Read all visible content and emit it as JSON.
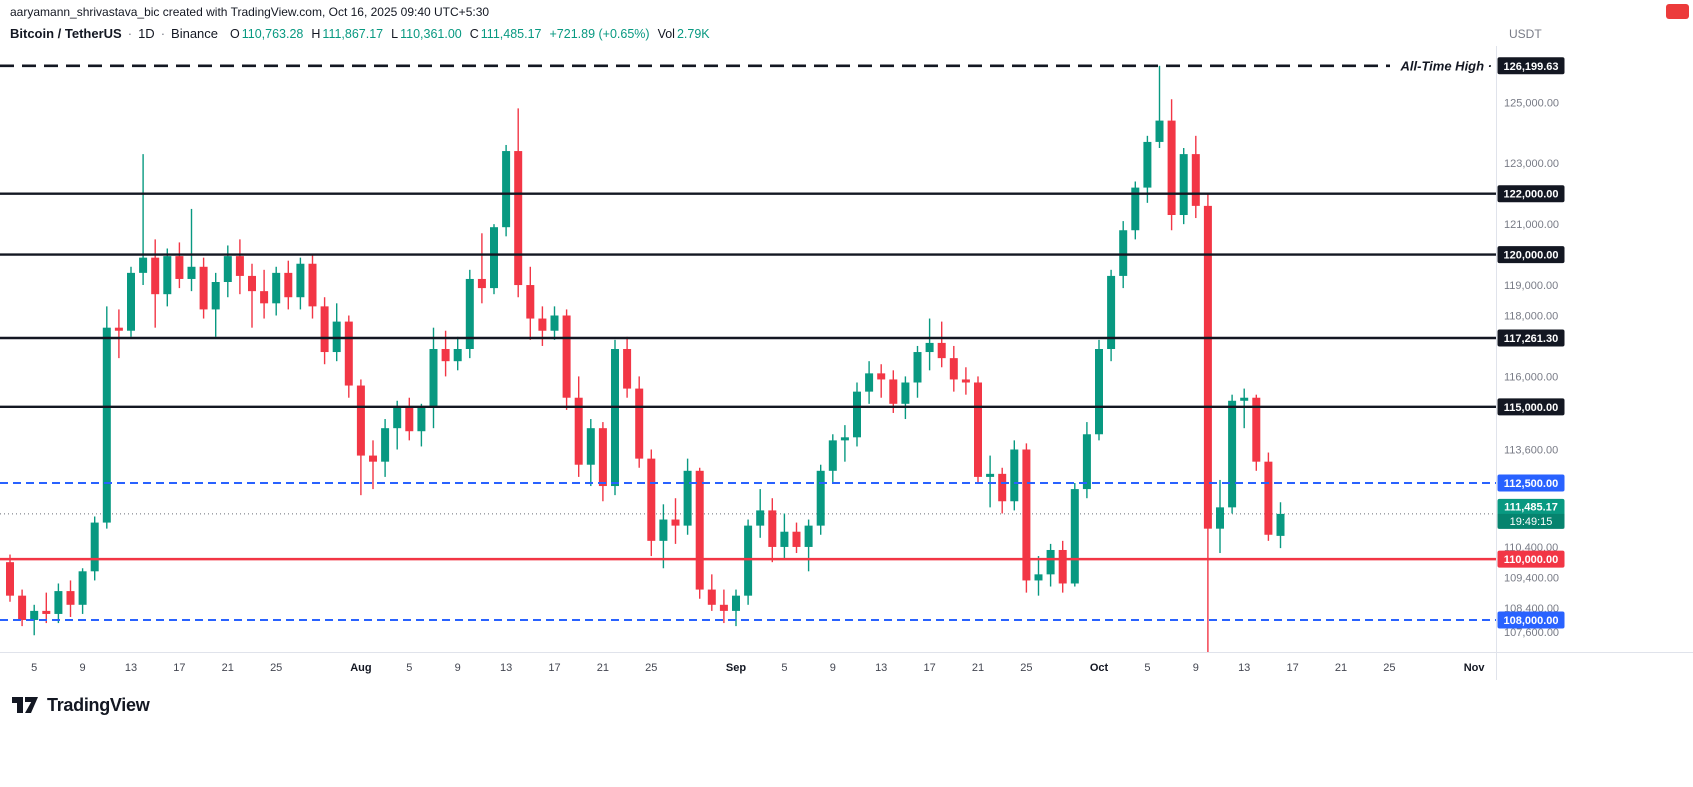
{
  "attribution": {
    "text": "aaryamann_shrivastava_bic created with TradingView.com, Oct 16, 2025 09:40 UTC+5:30"
  },
  "toolbar": {
    "symbol": "Bitcoin / TetherUS",
    "separator": "·",
    "interval": "1D",
    "exchange": "Binance",
    "ohlc": {
      "o_label": "O",
      "o": "110,763.28",
      "h_label": "H",
      "h": "111,867.17",
      "l_label": "L",
      "l": "110,361.00",
      "c_label": "C",
      "c": "111,485.17",
      "change": "+721.89 (+0.65%)",
      "vol_label": "Vol",
      "vol": "2.79K"
    },
    "currency": "USDT"
  },
  "footer": {
    "logo_text": "TradingView"
  },
  "chart_data": {
    "type": "candlestick",
    "symbol": "BTCUSDT",
    "interval": "1D",
    "exchange": "Binance",
    "colors": {
      "up": "#089981",
      "down": "#F23645",
      "blue_level": "#2962FF",
      "red_level": "#F23645",
      "black_level": "#131722"
    },
    "candle_format": [
      "date",
      "open",
      "high",
      "low",
      "close"
    ],
    "candles": [
      [
        "Jul 3",
        109900,
        110150,
        108600,
        108800
      ],
      [
        "Jul 4",
        108800,
        109000,
        107800,
        108000
      ],
      [
        "Jul 5",
        108000,
        108500,
        107500,
        108300
      ],
      [
        "Jul 6",
        108300,
        108900,
        107900,
        108200
      ],
      [
        "Jul 7",
        108200,
        109200,
        107900,
        108950
      ],
      [
        "Jul 8",
        108950,
        109300,
        108100,
        108500
      ],
      [
        "Jul 9",
        108500,
        109700,
        108200,
        109600
      ],
      [
        "Jul 10",
        109600,
        111400,
        109300,
        111200
      ],
      [
        "Jul 11",
        111200,
        118300,
        111000,
        117600
      ],
      [
        "Jul 12",
        117600,
        118200,
        116600,
        117500
      ],
      [
        "Jul 13",
        117500,
        119600,
        117300,
        119400
      ],
      [
        "Jul 14",
        119400,
        123300,
        119000,
        119900
      ],
      [
        "Jul 15",
        119900,
        120500,
        117600,
        118700
      ],
      [
        "Jul 16",
        118700,
        120200,
        118300,
        119950
      ],
      [
        "Jul 17",
        119950,
        120400,
        118900,
        119200
      ],
      [
        "Jul 18",
        119200,
        121500,
        118800,
        119600
      ],
      [
        "Jul 19",
        119600,
        119900,
        117900,
        118200
      ],
      [
        "Jul 20",
        118200,
        119400,
        117300,
        119100
      ],
      [
        "Jul 21",
        119100,
        120300,
        118600,
        119950
      ],
      [
        "Jul 22",
        119950,
        120500,
        118700,
        119300
      ],
      [
        "Jul 23",
        119300,
        119700,
        117600,
        118800
      ],
      [
        "Jul 24",
        118800,
        119500,
        117900,
        118400
      ],
      [
        "Jul 25",
        118400,
        119600,
        118000,
        119400
      ],
      [
        "Jul 26",
        119400,
        119800,
        118200,
        118600
      ],
      [
        "Jul 27",
        118600,
        119900,
        118200,
        119700
      ],
      [
        "Jul 28",
        119700,
        120000,
        117900,
        118300
      ],
      [
        "Jul 29",
        118300,
        118600,
        116400,
        116800
      ],
      [
        "Jul 30",
        116800,
        118400,
        116500,
        117800
      ],
      [
        "Jul 31",
        117800,
        118000,
        115300,
        115700
      ],
      [
        "Aug 1",
        115700,
        115900,
        112100,
        113400
      ],
      [
        "Aug 2",
        113400,
        113900,
        112300,
        113200
      ],
      [
        "Aug 3",
        113200,
        114600,
        112700,
        114300
      ],
      [
        "Aug 4",
        114300,
        115200,
        113600,
        115000
      ],
      [
        "Aug 5",
        115000,
        115300,
        113900,
        114200
      ],
      [
        "Aug 6",
        114200,
        115100,
        113700,
        115000
      ],
      [
        "Aug 7",
        115000,
        117600,
        114300,
        116900
      ],
      [
        "Aug 8",
        116900,
        117500,
        116000,
        116500
      ],
      [
        "Aug 9",
        116500,
        117300,
        116200,
        116900
      ],
      [
        "Aug 10",
        116900,
        119500,
        116600,
        119200
      ],
      [
        "Aug 11",
        119200,
        120700,
        118400,
        118900
      ],
      [
        "Aug 12",
        118900,
        121000,
        118700,
        120900
      ],
      [
        "Aug 13",
        120900,
        123600,
        120600,
        123400
      ],
      [
        "Aug 14",
        123400,
        124800,
        118600,
        119000
      ],
      [
        "Aug 15",
        119000,
        119600,
        117200,
        117900
      ],
      [
        "Aug 16",
        117900,
        118300,
        117000,
        117500
      ],
      [
        "Aug 17",
        117500,
        118300,
        117200,
        118000
      ],
      [
        "Aug 18",
        118000,
        118200,
        114900,
        115300
      ],
      [
        "Aug 19",
        115300,
        116000,
        112700,
        113100
      ],
      [
        "Aug 20",
        113100,
        114600,
        112400,
        114300
      ],
      [
        "Aug 21",
        114300,
        114500,
        111900,
        112400
      ],
      [
        "Aug 22",
        112400,
        117200,
        112100,
        116900
      ],
      [
        "Aug 23",
        116900,
        117300,
        115300,
        115600
      ],
      [
        "Aug 24",
        115600,
        116000,
        113000,
        113300
      ],
      [
        "Aug 25",
        113300,
        113600,
        110100,
        110600
      ],
      [
        "Aug 26",
        110600,
        111800,
        109700,
        111300
      ],
      [
        "Aug 27",
        111300,
        112000,
        110500,
        111100
      ],
      [
        "Aug 28",
        111100,
        113300,
        110800,
        112900
      ],
      [
        "Aug 29",
        112900,
        113000,
        108700,
        109000
      ],
      [
        "Aug 30",
        109000,
        109500,
        108300,
        108500
      ],
      [
        "Aug 31",
        108500,
        109000,
        107900,
        108300
      ],
      [
        "Sep 1",
        108300,
        109000,
        107800,
        108800
      ],
      [
        "Sep 2",
        108800,
        111300,
        108500,
        111100
      ],
      [
        "Sep 3",
        111100,
        112300,
        110700,
        111600
      ],
      [
        "Sep 4",
        111600,
        112000,
        109900,
        110400
      ],
      [
        "Sep 5",
        110400,
        111500,
        110000,
        110900
      ],
      [
        "Sep 6",
        110900,
        111200,
        110200,
        110400
      ],
      [
        "Sep 7",
        110400,
        111300,
        109600,
        111100
      ],
      [
        "Sep 8",
        111100,
        113100,
        110800,
        112900
      ],
      [
        "Sep 9",
        112900,
        114100,
        112500,
        113900
      ],
      [
        "Sep 10",
        113900,
        114400,
        113200,
        114000
      ],
      [
        "Sep 11",
        114000,
        115800,
        113700,
        115500
      ],
      [
        "Sep 12",
        115500,
        116500,
        115100,
        116100
      ],
      [
        "Sep 13",
        116100,
        116400,
        115300,
        115900
      ],
      [
        "Sep 14",
        115900,
        116200,
        114800,
        115100
      ],
      [
        "Sep 15",
        115100,
        116000,
        114600,
        115800
      ],
      [
        "Sep 16",
        115800,
        117000,
        115300,
        116800
      ],
      [
        "Sep 17",
        116800,
        117900,
        116200,
        117100
      ],
      [
        "Sep 18",
        117100,
        117800,
        116300,
        116600
      ],
      [
        "Sep 19",
        116600,
        117000,
        115500,
        115900
      ],
      [
        "Sep 20",
        115900,
        116300,
        115400,
        115800
      ],
      [
        "Sep 21",
        115800,
        116000,
        112500,
        112700
      ],
      [
        "Sep 22",
        112700,
        113400,
        111700,
        112800
      ],
      [
        "Sep 23",
        112800,
        113000,
        111500,
        111900
      ],
      [
        "Sep 24",
        111900,
        113900,
        111600,
        113600
      ],
      [
        "Sep 25",
        113600,
        113800,
        108900,
        109300
      ],
      [
        "Sep 26",
        109300,
        110100,
        108800,
        109500
      ],
      [
        "Sep 27",
        109500,
        110500,
        109100,
        110300
      ],
      [
        "Sep 28",
        110300,
        110600,
        108900,
        109200
      ],
      [
        "Sep 29",
        109200,
        112500,
        109100,
        112300
      ],
      [
        "Sep 30",
        112300,
        114500,
        112000,
        114100
      ],
      [
        "Oct 1",
        114100,
        117200,
        113900,
        116900
      ],
      [
        "Oct 2",
        116900,
        119500,
        116500,
        119300
      ],
      [
        "Oct 3",
        119300,
        121100,
        118900,
        120800
      ],
      [
        "Oct 4",
        120800,
        122400,
        120500,
        122200
      ],
      [
        "Oct 5",
        122200,
        123900,
        121700,
        123700
      ],
      [
        "Oct 6",
        123700,
        126199.63,
        123500,
        124400
      ],
      [
        "Oct 7",
        124400,
        125100,
        120800,
        121300
      ],
      [
        "Oct 8",
        121300,
        123500,
        121000,
        123300
      ],
      [
        "Oct 9",
        123300,
        123900,
        121200,
        121600
      ],
      [
        "Oct 10",
        121600,
        122000,
        106800,
        111000
      ],
      [
        "Oct 11",
        111000,
        112600,
        110200,
        111700
      ],
      [
        "Oct 12",
        111700,
        115400,
        111500,
        115200
      ],
      [
        "Oct 13",
        115200,
        115600,
        114300,
        115300
      ],
      [
        "Oct 14",
        115300,
        115400,
        112900,
        113200
      ],
      [
        "Oct 15",
        113200,
        113500,
        110600,
        110800
      ],
      [
        "Oct 16",
        110763.28,
        111867.17,
        110361.0,
        111485.17
      ]
    ],
    "levels": [
      {
        "price": 126199.63,
        "label": "126,199.63",
        "style": "dashed",
        "dash": "14 8",
        "color": "#131722",
        "width": 2.6,
        "annotation": "All-Time High ·"
      },
      {
        "price": 122000,
        "label": "122,000.00",
        "style": "solid",
        "color": "#131722",
        "width": 2.4
      },
      {
        "price": 120000,
        "label": "120,000.00",
        "style": "solid",
        "color": "#131722",
        "width": 2.4
      },
      {
        "price": 117261.3,
        "label": "117,261.30",
        "style": "solid",
        "color": "#131722",
        "width": 2.4
      },
      {
        "price": 115000,
        "label": "115,000.00",
        "style": "solid",
        "color": "#131722",
        "width": 2.4
      },
      {
        "price": 112500,
        "label": "112,500.00",
        "style": "dashed",
        "dash": "8 5",
        "color": "#2962FF",
        "width": 2
      },
      {
        "price": 110000,
        "label": "110,000.00",
        "style": "solid",
        "color": "#F23645",
        "width": 2.4
      },
      {
        "price": 108000,
        "label": "108,000.00",
        "style": "dashed",
        "dash": "8 5",
        "color": "#2962FF",
        "width": 2
      }
    ],
    "last_price": {
      "price": 111485.17,
      "label": "111,485.17",
      "countdown": "19:49:15",
      "color": "#089981"
    },
    "price_axis": {
      "min": 106950,
      "max": 126850,
      "labels": [
        {
          "t": "125,000.00",
          "p": 125000
        },
        {
          "t": "123,000.00",
          "p": 123000
        },
        {
          "t": "121,000.00",
          "p": 121000
        },
        {
          "t": "119,000.00",
          "p": 119000
        },
        {
          "t": "118,000.00",
          "p": 118000
        },
        {
          "t": "116,000.00",
          "p": 116000
        },
        {
          "t": "113,600.00",
          "p": 113600
        },
        {
          "t": "110,400.00",
          "p": 110400
        },
        {
          "t": "109,400.00",
          "p": 109400
        },
        {
          "t": "108,400.00",
          "p": 108400
        },
        {
          "t": "107,600.00",
          "p": 107600
        }
      ]
    },
    "time_axis": [
      {
        "label": "5",
        "idx": 2
      },
      {
        "label": "9",
        "idx": 6
      },
      {
        "label": "13",
        "idx": 10
      },
      {
        "label": "17",
        "idx": 14
      },
      {
        "label": "21",
        "idx": 18
      },
      {
        "label": "25",
        "idx": 22
      },
      {
        "label": "Aug",
        "idx": 29,
        "month": true
      },
      {
        "label": "5",
        "idx": 33
      },
      {
        "label": "9",
        "idx": 37
      },
      {
        "label": "13",
        "idx": 41
      },
      {
        "label": "17",
        "idx": 45
      },
      {
        "label": "21",
        "idx": 49
      },
      {
        "label": "25",
        "idx": 53
      },
      {
        "label": "Sep",
        "idx": 60,
        "month": true
      },
      {
        "label": "5",
        "idx": 64
      },
      {
        "label": "9",
        "idx": 68
      },
      {
        "label": "13",
        "idx": 72
      },
      {
        "label": "17",
        "idx": 76
      },
      {
        "label": "21",
        "idx": 80
      },
      {
        "label": "25",
        "idx": 84
      },
      {
        "label": "Oct",
        "idx": 90,
        "month": true
      },
      {
        "label": "5",
        "idx": 94
      },
      {
        "label": "9",
        "idx": 98
      },
      {
        "label": "13",
        "idx": 102
      },
      {
        "label": "17",
        "idx": 106
      },
      {
        "label": "21",
        "idx": 110
      },
      {
        "label": "25",
        "idx": 114
      },
      {
        "label": "Nov",
        "idx": 121,
        "month": true
      }
    ]
  }
}
